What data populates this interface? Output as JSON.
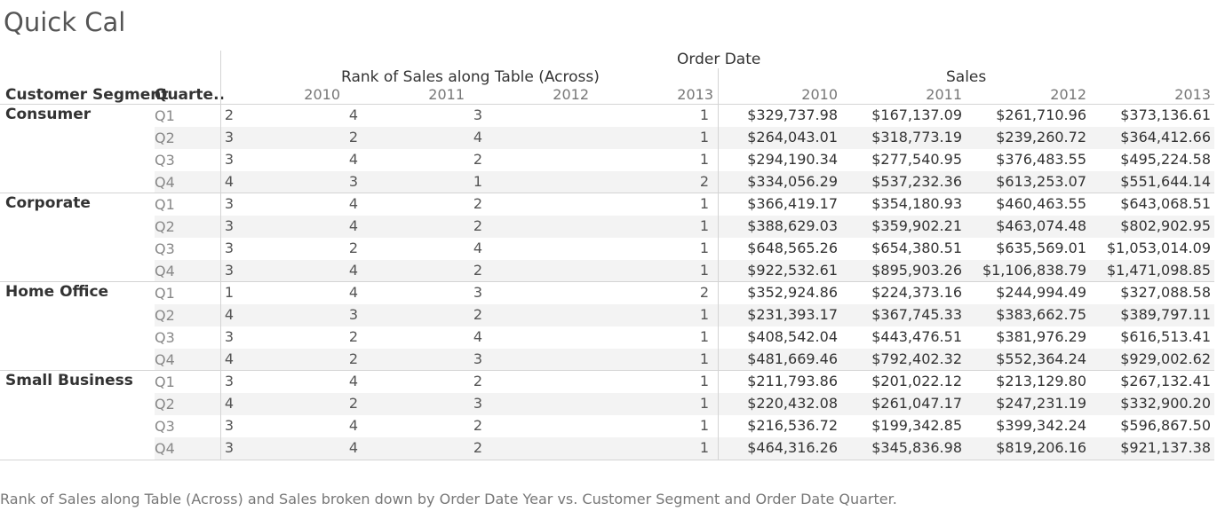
{
  "title": "Quick Cal",
  "header": {
    "top": "Order Date",
    "rank_group": "Rank of Sales along Table (Across)",
    "sales_group": "Sales",
    "row_header_1": "Customer Segment",
    "row_header_2": "Quarte.."
  },
  "caption": "Rank of Sales along Table (Across) and Sales broken down by Order Date Year vs. Customer Segment and Order Date Quarter.",
  "chart_data": {
    "type": "table",
    "years": [
      "2010",
      "2011",
      "2012",
      "2013"
    ],
    "measures": [
      "Rank of Sales along Table (Across)",
      "Sales"
    ],
    "rows": [
      {
        "segment": "Consumer",
        "quarter": "Q1",
        "rank": [
          "2",
          "4",
          "3",
          "1"
        ],
        "sales": [
          "$329,737.98",
          "$167,137.09",
          "$261,710.96",
          "$373,136.61"
        ]
      },
      {
        "segment": "Consumer",
        "quarter": "Q2",
        "rank": [
          "3",
          "2",
          "4",
          "1"
        ],
        "sales": [
          "$264,043.01",
          "$318,773.19",
          "$239,260.72",
          "$364,412.66"
        ]
      },
      {
        "segment": "Consumer",
        "quarter": "Q3",
        "rank": [
          "3",
          "4",
          "2",
          "1"
        ],
        "sales": [
          "$294,190.34",
          "$277,540.95",
          "$376,483.55",
          "$495,224.58"
        ]
      },
      {
        "segment": "Consumer",
        "quarter": "Q4",
        "rank": [
          "4",
          "3",
          "1",
          "2"
        ],
        "sales": [
          "$334,056.29",
          "$537,232.36",
          "$613,253.07",
          "$551,644.14"
        ]
      },
      {
        "segment": "Corporate",
        "quarter": "Q1",
        "rank": [
          "3",
          "4",
          "2",
          "1"
        ],
        "sales": [
          "$366,419.17",
          "$354,180.93",
          "$460,463.55",
          "$643,068.51"
        ]
      },
      {
        "segment": "Corporate",
        "quarter": "Q2",
        "rank": [
          "3",
          "4",
          "2",
          "1"
        ],
        "sales": [
          "$388,629.03",
          "$359,902.21",
          "$463,074.48",
          "$802,902.95"
        ]
      },
      {
        "segment": "Corporate",
        "quarter": "Q3",
        "rank": [
          "3",
          "2",
          "4",
          "1"
        ],
        "sales": [
          "$648,565.26",
          "$654,380.51",
          "$635,569.01",
          "$1,053,014.09"
        ]
      },
      {
        "segment": "Corporate",
        "quarter": "Q4",
        "rank": [
          "3",
          "4",
          "2",
          "1"
        ],
        "sales": [
          "$922,532.61",
          "$895,903.26",
          "$1,106,838.79",
          "$1,471,098.85"
        ]
      },
      {
        "segment": "Home Office",
        "quarter": "Q1",
        "rank": [
          "1",
          "4",
          "3",
          "2"
        ],
        "sales": [
          "$352,924.86",
          "$224,373.16",
          "$244,994.49",
          "$327,088.58"
        ]
      },
      {
        "segment": "Home Office",
        "quarter": "Q2",
        "rank": [
          "4",
          "3",
          "2",
          "1"
        ],
        "sales": [
          "$231,393.17",
          "$367,745.33",
          "$383,662.75",
          "$389,797.11"
        ]
      },
      {
        "segment": "Home Office",
        "quarter": "Q3",
        "rank": [
          "3",
          "2",
          "4",
          "1"
        ],
        "sales": [
          "$408,542.04",
          "$443,476.51",
          "$381,976.29",
          "$616,513.41"
        ]
      },
      {
        "segment": "Home Office",
        "quarter": "Q4",
        "rank": [
          "4",
          "2",
          "3",
          "1"
        ],
        "sales": [
          "$481,669.46",
          "$792,402.32",
          "$552,364.24",
          "$929,002.62"
        ]
      },
      {
        "segment": "Small Business",
        "quarter": "Q1",
        "rank": [
          "3",
          "4",
          "2",
          "1"
        ],
        "sales": [
          "$211,793.86",
          "$201,022.12",
          "$213,129.80",
          "$267,132.41"
        ]
      },
      {
        "segment": "Small Business",
        "quarter": "Q2",
        "rank": [
          "4",
          "2",
          "3",
          "1"
        ],
        "sales": [
          "$220,432.08",
          "$261,047.17",
          "$247,231.19",
          "$332,900.20"
        ]
      },
      {
        "segment": "Small Business",
        "quarter": "Q3",
        "rank": [
          "3",
          "4",
          "2",
          "1"
        ],
        "sales": [
          "$216,536.72",
          "$199,342.85",
          "$399,342.24",
          "$596,867.50"
        ]
      },
      {
        "segment": "Small Business",
        "quarter": "Q4",
        "rank": [
          "3",
          "4",
          "2",
          "1"
        ],
        "sales": [
          "$464,316.26",
          "$345,836.98",
          "$819,206.16",
          "$921,137.38"
        ]
      }
    ]
  }
}
